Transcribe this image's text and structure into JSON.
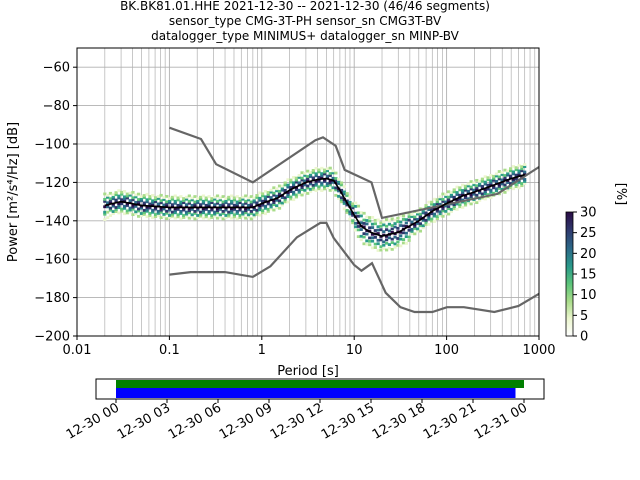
{
  "chart_data": [
    {
      "type": "heatmap",
      "title_lines": [
        "BK.BK81.01.HHE   2021-12-30 -- 2021-12-30  (46/46 segments)",
        "sensor_type CMG-3T-PH sensor_sn CMG3T-BV",
        "datalogger_type MINIMUS+ datalogger_sn MINP-BV"
      ],
      "xlabel": "Period [s]",
      "ylabel": "Power [m²/s⁴/Hz] [dB]",
      "xscale": "log",
      "xlim": [
        0.01,
        1000
      ],
      "ylim": [
        -200,
        -50
      ],
      "x_ticks": [
        {
          "value": 0.01,
          "label": "0.01"
        },
        {
          "value": 0.1,
          "label": "0.1"
        },
        {
          "value": 1,
          "label": "1"
        },
        {
          "value": 10,
          "label": "10"
        },
        {
          "value": 100,
          "label": "100"
        },
        {
          "value": 1000,
          "label": "1000"
        }
      ],
      "y_ticks": [
        {
          "value": -60,
          "label": "−60"
        },
        {
          "value": -80,
          "label": "−80"
        },
        {
          "value": -100,
          "label": "−100"
        },
        {
          "value": -120,
          "label": "−120"
        },
        {
          "value": -140,
          "label": "−140"
        },
        {
          "value": -160,
          "label": "−160"
        },
        {
          "value": -180,
          "label": "−180"
        },
        {
          "value": -200,
          "label": "−200"
        }
      ],
      "grid": true,
      "mean_psd": [
        [
          0.02,
          -132
        ],
        [
          0.03,
          -130
        ],
        [
          0.05,
          -132
        ],
        [
          0.1,
          -133
        ],
        [
          0.2,
          -133
        ],
        [
          0.4,
          -133
        ],
        [
          0.8,
          -133
        ],
        [
          1.0,
          -131
        ],
        [
          1.5,
          -128
        ],
        [
          2.0,
          -124
        ],
        [
          3.0,
          -120
        ],
        [
          4.0,
          -118.5
        ],
        [
          5.0,
          -118
        ],
        [
          6.0,
          -119
        ],
        [
          7.0,
          -124
        ],
        [
          8.0,
          -129
        ],
        [
          10.0,
          -137
        ],
        [
          12.0,
          -143
        ],
        [
          15.0,
          -146
        ],
        [
          20.0,
          -148
        ],
        [
          30.0,
          -146
        ],
        [
          50.0,
          -140
        ],
        [
          70.0,
          -135
        ],
        [
          100.0,
          -131
        ],
        [
          150.0,
          -127
        ],
        [
          200.0,
          -125
        ],
        [
          300.0,
          -122
        ],
        [
          500.0,
          -118
        ],
        [
          700.0,
          -116
        ]
      ],
      "nhnm": [
        [
          0.1,
          -91.5
        ],
        [
          0.22,
          -97.4
        ],
        [
          0.32,
          -110.5
        ],
        [
          0.8,
          -120
        ],
        [
          3.8,
          -98
        ],
        [
          4.6,
          -96.5
        ],
        [
          6.3,
          -101
        ],
        [
          7.9,
          -113.5
        ],
        [
          15.4,
          -120
        ],
        [
          20,
          -138.5
        ],
        [
          354.8,
          -126
        ],
        [
          1000,
          -112
        ]
      ],
      "nlnm": [
        [
          0.1,
          -168
        ],
        [
          0.17,
          -166.7
        ],
        [
          0.4,
          -166.7
        ],
        [
          0.8,
          -169.2
        ],
        [
          1.24,
          -163.7
        ],
        [
          2.4,
          -148.6
        ],
        [
          4.3,
          -141.1
        ],
        [
          5.0,
          -141.1
        ],
        [
          6.0,
          -149
        ],
        [
          10.0,
          -163
        ],
        [
          12.0,
          -166
        ],
        [
          15.6,
          -162.1
        ],
        [
          21.9,
          -177.5
        ],
        [
          31.6,
          -185
        ],
        [
          45,
          -187.5
        ],
        [
          70,
          -187.5
        ],
        [
          101,
          -185
        ],
        [
          154,
          -185
        ],
        [
          328,
          -187.5
        ],
        [
          600,
          -184.4
        ],
        [
          1000,
          -178
        ]
      ],
      "colorbar": {
        "label": "[%]",
        "range": [
          0,
          30
        ],
        "ticks": [
          {
            "value": 0,
            "label": "0"
          },
          {
            "value": 5,
            "label": "5"
          },
          {
            "value": 10,
            "label": "10"
          },
          {
            "value": 15,
            "label": "15"
          },
          {
            "value": 20,
            "label": "20"
          },
          {
            "value": 25,
            "label": "25"
          },
          {
            "value": 30,
            "label": "30"
          }
        ],
        "colors": [
          "#ffffff",
          "#ecf6cf",
          "#a9dc8a",
          "#5cc47a",
          "#2a9a8a",
          "#2c6a88",
          "#2f3a6e",
          "#2a0b45"
        ]
      }
    },
    {
      "type": "timeline",
      "time_range_hours": [
        0,
        24
      ],
      "ticks": [
        {
          "hours": 0,
          "label": "12-30 00"
        },
        {
          "hours": 3,
          "label": "12-30 03"
        },
        {
          "hours": 6,
          "label": "12-30 06"
        },
        {
          "hours": 9,
          "label": "12-30 09"
        },
        {
          "hours": 12,
          "label": "12-30 12"
        },
        {
          "hours": 15,
          "label": "12-30 15"
        },
        {
          "hours": 18,
          "label": "12-30 18"
        },
        {
          "hours": 21,
          "label": "12-30 21"
        },
        {
          "hours": 24,
          "label": "12-31 00"
        }
      ],
      "bars": [
        {
          "start_hours": 0,
          "end_hours": 24.0,
          "color": "#008000"
        },
        {
          "start_hours": 0,
          "end_hours": 23.5,
          "color": "#0000ff"
        }
      ]
    }
  ]
}
